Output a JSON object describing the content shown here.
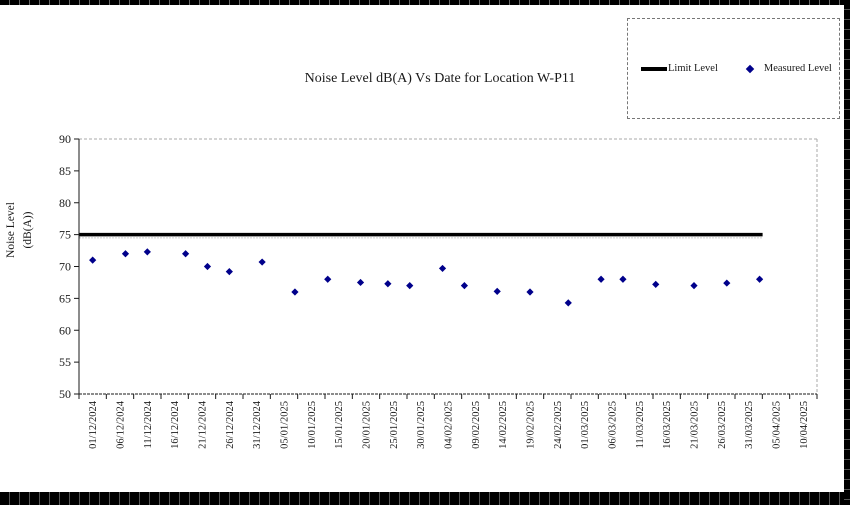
{
  "title_text": "Noise Level dB(A) Vs Date for Location W-P11",
  "colors": {
    "limit_line": "#000000",
    "measured_marker": "#00008B",
    "frame_border": "#000000",
    "plot_border_dashed": "#aaaaaa",
    "axis": "#1a1a1a"
  },
  "legend": {
    "limit_label": "Limit Level",
    "measured_label": "Measured Level"
  },
  "chart_data": {
    "type": "scatter",
    "title": "Noise Level dB(A) Vs Date for Location W-P11",
    "xlabel": "",
    "ylabel": "Noise Level (dB(A))",
    "ylabel_lines": [
      "Noise Level",
      "(dB(A))"
    ],
    "ylim": [
      50,
      90
    ],
    "ytick_step": 5,
    "grid": false,
    "legend_position": "top-right-outside",
    "x_tick_interval_days": 5,
    "x_tick_labels": [
      "01/12/2024",
      "06/12/2024",
      "11/12/2024",
      "16/12/2024",
      "21/12/2024",
      "26/12/2024",
      "31/12/2024",
      "05/01/2025",
      "10/01/2025",
      "15/01/2025",
      "20/01/2025",
      "25/01/2025",
      "30/01/2025",
      "04/02/2025",
      "09/02/2025",
      "14/02/2025",
      "19/02/2025",
      "24/02/2025",
      "01/03/2025",
      "06/03/2025",
      "11/03/2025",
      "16/03/2025",
      "21/03/2025",
      "26/03/2025",
      "31/03/2025",
      "05/04/2025",
      "10/04/2025"
    ],
    "series": [
      {
        "name": "Limit Level",
        "type": "line",
        "color": "#000000",
        "value": 75,
        "x_start": "01/12/2024",
        "x_end": "02/04/2025"
      },
      {
        "name": "Measured Level",
        "type": "points",
        "color": "#00008B",
        "points": [
          {
            "date": "01/12/2024",
            "value": 71.0
          },
          {
            "date": "07/12/2024",
            "value": 72.0
          },
          {
            "date": "11/12/2024",
            "value": 72.3
          },
          {
            "date": "18/12/2024",
            "value": 72.0
          },
          {
            "date": "22/12/2024",
            "value": 70.0
          },
          {
            "date": "26/12/2024",
            "value": 69.2
          },
          {
            "date": "01/01/2025",
            "value": 70.7
          },
          {
            "date": "07/01/2025",
            "value": 66.0
          },
          {
            "date": "13/01/2025",
            "value": 68.0
          },
          {
            "date": "19/01/2025",
            "value": 67.5
          },
          {
            "date": "24/01/2025",
            "value": 67.3
          },
          {
            "date": "28/01/2025",
            "value": 67.0
          },
          {
            "date": "03/02/2025",
            "value": 69.7
          },
          {
            "date": "07/02/2025",
            "value": 67.0
          },
          {
            "date": "13/02/2025",
            "value": 66.1
          },
          {
            "date": "19/02/2025",
            "value": 66.0
          },
          {
            "date": "26/02/2025",
            "value": 64.3
          },
          {
            "date": "04/03/2025",
            "value": 68.0
          },
          {
            "date": "08/03/2025",
            "value": 68.0
          },
          {
            "date": "14/03/2025",
            "value": 67.2
          },
          {
            "date": "21/03/2025",
            "value": 67.0
          },
          {
            "date": "27/03/2025",
            "value": 67.4
          },
          {
            "date": "02/04/2025",
            "value": 68.0
          }
        ]
      }
    ]
  }
}
